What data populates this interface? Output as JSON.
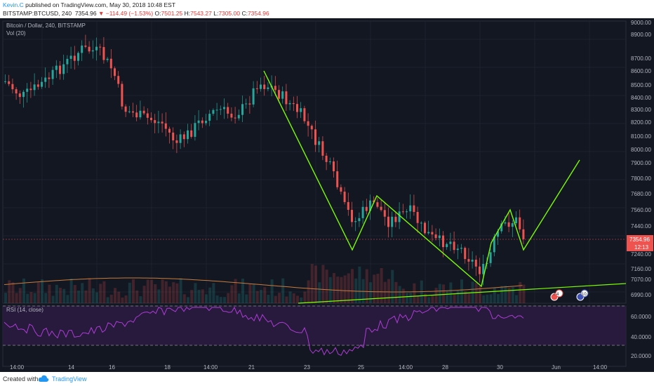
{
  "header": {
    "author": "Kevin.C",
    "published": " published on TradingView.com, May 30, 2018 10:48 EST",
    "symbol": "BITSTAMP:BTCUSD, 240",
    "last": "7354.96",
    "change": "−114.49 (−1.53%)",
    "o_label": "O:",
    "o_value": "7501.25",
    "h_label": "H:",
    "h_value": "7543.27",
    "l_label": "L:",
    "l_value": "7305.00",
    "c_label": "C:",
    "c_value": "7354.96"
  },
  "chart": {
    "title": "Bitcoin / Dollar, 240, BITSTAMP",
    "volume_label": "Vol (20)",
    "rsi_label": "RSI (14, close)",
    "price_axis": [
      "9000.00",
      "8900.00",
      "8700.00",
      "8600.00",
      "8500.00",
      "8400.00",
      "8300.00",
      "8200.00",
      "8100.00",
      "8000.00",
      "7900.00",
      "7800.00",
      "7680.00",
      "7560.00",
      "7440.00",
      "7240.00",
      "7160.00",
      "7070.00",
      "6990.00"
    ],
    "last_price_tag": "7354.96",
    "countdown_tag": "12:13",
    "rsi_axis": [
      "60.0000",
      "40.0000",
      "20.0000"
    ],
    "time_axis": [
      "14:00",
      "14",
      "16",
      "18",
      "14:00",
      "21",
      "23",
      "25",
      "14:00",
      "28",
      "30",
      "Jun",
      "14:00"
    ],
    "events": [
      {
        "label": "7 4"
      },
      {
        "label": "10"
      }
    ]
  },
  "footer": {
    "created": "Created with",
    "brand": "TradingView"
  },
  "colors": {
    "up": "#26a69a",
    "down": "#ef5350",
    "pattern": "#7cfc00",
    "rsi": "#9c27b0",
    "background": "#131722"
  }
}
